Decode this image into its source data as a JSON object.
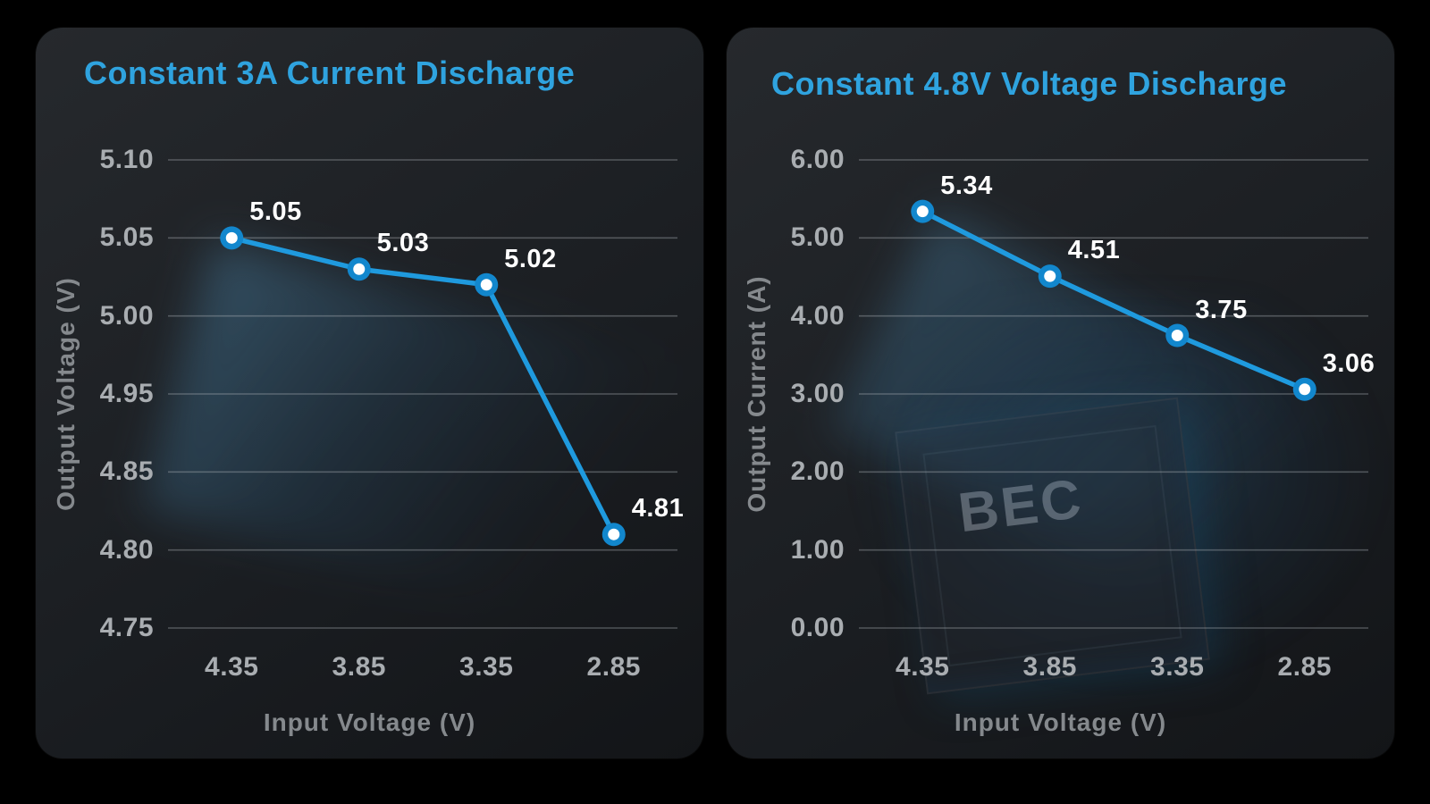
{
  "colors": {
    "background": "#000000",
    "panel_top": "#26292d",
    "panel_bottom": "#131518",
    "title": "#2fa3df",
    "tick_label": "#a9adb1",
    "axis_title": "#85898d",
    "grid_line": "#aeb3b8",
    "line": "#1f9ade",
    "marker_ring": "#1287cd",
    "marker_core": "#ffffff",
    "point_label": "#ffffff",
    "watermark_text": "#8e969e"
  },
  "chart_data": [
    {
      "type": "line",
      "title": "Constant 3A Current Discharge",
      "xlabel": "Input Voltage (V)",
      "ylabel": "Output Voltage (V)",
      "categories": [
        "4.35",
        "3.85",
        "3.35",
        "2.85"
      ],
      "values": [
        5.05,
        5.03,
        5.02,
        4.81
      ],
      "point_labels": [
        "5.05",
        "5.03",
        "5.02",
        "4.81"
      ],
      "y_ticks": [
        "5.10",
        "5.05",
        "5.00",
        "4.95",
        "4.85",
        "4.80",
        "4.75"
      ],
      "ylim": [
        4.75,
        5.1
      ],
      "grid": true,
      "legend": false
    },
    {
      "type": "line",
      "title": "Constant 4.8V Voltage Discharge",
      "xlabel": "Input Voltage (V)",
      "ylabel": "Output Current (A)",
      "categories": [
        "4.35",
        "3.85",
        "3.35",
        "2.85"
      ],
      "values": [
        5.34,
        4.51,
        3.75,
        3.06
      ],
      "point_labels": [
        "5.34",
        "4.51",
        "3.75",
        "3.06"
      ],
      "y_ticks": [
        "6.00",
        "5.00",
        "4.00",
        "3.00",
        "2.00",
        "1.00",
        "0.00"
      ],
      "ylim": [
        0.0,
        6.0
      ],
      "grid": true,
      "legend": false,
      "watermark": "BEC"
    }
  ]
}
